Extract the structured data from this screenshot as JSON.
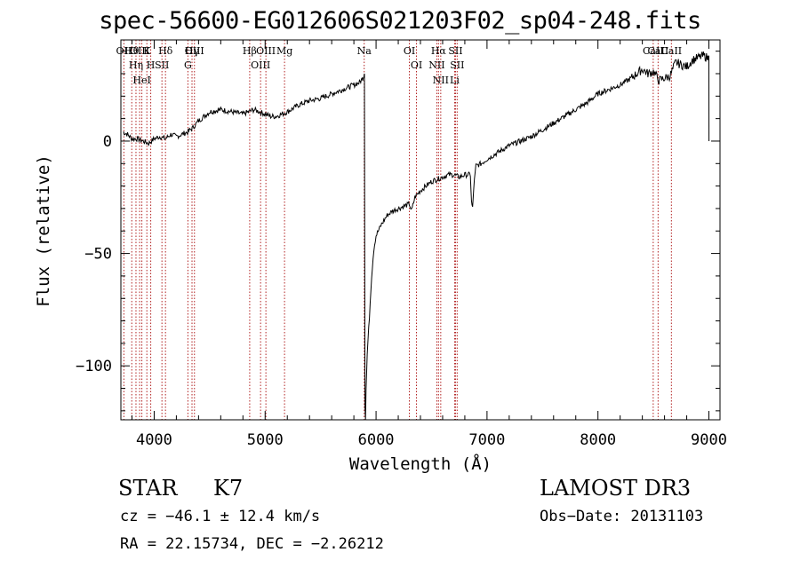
{
  "chart_data": {
    "type": "line",
    "title": "spec-56600-EG012606S021203F02_sp04-248.fits",
    "xlabel": "Wavelength (Å)",
    "ylabel": "Flux (relative)",
    "xlim": [
      3700,
      9100
    ],
    "ylim": [
      -124,
      45
    ],
    "x_ticks": [
      4000,
      5000,
      6000,
      7000,
      8000,
      9000
    ],
    "x_tick_labels": [
      "4000",
      "5000",
      "6000",
      "7000",
      "8000",
      "9000"
    ],
    "y_ticks": [
      0,
      -50,
      -100
    ],
    "y_tick_labels": [
      "0",
      "−50",
      "−100"
    ],
    "series": [
      {
        "name": "spectrum",
        "x": [
          3720,
          3760,
          3800,
          3850,
          3900,
          3950,
          4000,
          4050,
          4100,
          4150,
          4200,
          4250,
          4300,
          4350,
          4400,
          4450,
          4500,
          4600,
          4700,
          4800,
          4850,
          4900,
          4950,
          5000,
          5050,
          5100,
          5150,
          5200,
          5300,
          5400,
          5500,
          5600,
          5700,
          5800,
          5850,
          5880,
          5895,
          5900,
          5905,
          5910,
          5920,
          5940,
          5960,
          5980,
          6000,
          6050,
          6100,
          6150,
          6200,
          6250,
          6300,
          6320,
          6350,
          6400,
          6450,
          6500,
          6550,
          6600,
          6650,
          6700,
          6750,
          6800,
          6850,
          6860,
          6870,
          6880,
          6900,
          6950,
          7000,
          7100,
          7200,
          7300,
          7400,
          7500,
          7600,
          7700,
          7800,
          7900,
          8000,
          8100,
          8200,
          8300,
          8400,
          8450,
          8500,
          8550,
          8600,
          8650,
          8700,
          8750,
          8800,
          8850,
          8900,
          8950,
          8990,
          9000,
          9001
        ],
        "values": [
          4,
          3,
          1,
          1,
          0,
          -1,
          1,
          2,
          1,
          3,
          2,
          3,
          4,
          6,
          9,
          11,
          13,
          14,
          13,
          12,
          13,
          14,
          13,
          12,
          11,
          11,
          12,
          13,
          16,
          18,
          19,
          21,
          23,
          25,
          26,
          28,
          30,
          -118,
          -123,
          -110,
          -95,
          -78,
          -60,
          -48,
          -42,
          -37,
          -33,
          -31,
          -30,
          -29,
          -28,
          -31,
          -25,
          -22,
          -20,
          -18,
          -17,
          -16,
          -15,
          -15,
          -16,
          -15,
          -15,
          -27,
          -30,
          -21,
          -11,
          -10,
          -8,
          -5,
          -2,
          0,
          2,
          5,
          8,
          11,
          14,
          17,
          21,
          23,
          25,
          28,
          32,
          30,
          31,
          27,
          28,
          29,
          35,
          34,
          33,
          36,
          37,
          38,
          37,
          38,
          0
        ]
      }
    ],
    "lines_top": [
      {
        "label": "Hθ",
        "wavelength": 3798
      },
      {
        "label": "Hη",
        "wavelength": 3836
      },
      {
        "label": "HeI",
        "wavelength": 3889
      },
      {
        "label": "K",
        "wavelength": 3934
      },
      {
        "label": "H",
        "wavelength": 3969
      },
      {
        "label": "Hδ",
        "wavelength": 4102
      },
      {
        "label": "OII",
        "wavelength": 3727
      },
      {
        "label": "OIII",
        "wavelength": 3869
      },
      {
        "label": "SII",
        "wavelength": 4070
      },
      {
        "label": "OIII",
        "wavelength": 4363
      },
      {
        "label": "Hγ",
        "wavelength": 4341
      },
      {
        "label": "G",
        "wavelength": 4304
      },
      {
        "label": "OIII",
        "wavelength": 5007
      },
      {
        "label": "OIII",
        "wavelength": 4959
      },
      {
        "label": "Hβ",
        "wavelength": 4861
      },
      {
        "label": "Mg",
        "wavelength": 5175
      },
      {
        "label": "Na",
        "wavelength": 5893
      },
      {
        "label": "OI",
        "wavelength": 6300
      },
      {
        "label": "OI",
        "wavelength": 6364
      },
      {
        "label": "Hα",
        "wavelength": 6563
      },
      {
        "label": "NII",
        "wavelength": 6548
      },
      {
        "label": "NII",
        "wavelength": 6583
      },
      {
        "label": "SII",
        "wavelength": 6716
      },
      {
        "label": "SII",
        "wavelength": 6731
      },
      {
        "label": "Li",
        "wavelength": 6708
      },
      {
        "label": "CaII",
        "wavelength": 8498
      },
      {
        "label": "CaII",
        "wavelength": 8542
      },
      {
        "label": "CaII",
        "wavelength": 8662
      }
    ],
    "grid": false,
    "legend": "none"
  },
  "info": {
    "object_type": "STAR",
    "object_class": "K7",
    "survey": "LAMOST DR3",
    "redshift_line": "cz = −46.1 ± 12.4 km/s",
    "obs_date_line": "Obs−Date: 20131103",
    "radec_line": "RA =  22.15734, DEC =  −2.26212"
  },
  "colors": {
    "line_marker": "#b22222",
    "spectrum": "#000000",
    "axis": "#000000"
  }
}
